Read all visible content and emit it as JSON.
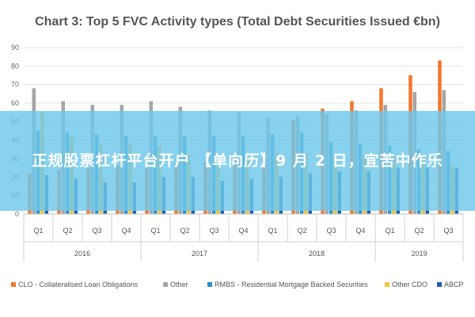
{
  "chart_data": {
    "type": "bar",
    "title": "Chart 3: Top 5 FVC Activity types (Total Debt Securities Issued €bn)",
    "xlabel": "",
    "ylabel": "",
    "ylim": [
      0,
      90
    ],
    "yticks": [
      0,
      10,
      20,
      30,
      40,
      50,
      60,
      70,
      80,
      90
    ],
    "grid": true,
    "legend": "bottom",
    "categories": [
      "Q1",
      "Q2",
      "Q3",
      "Q4",
      "Q1",
      "Q2",
      "Q3",
      "Q4",
      "Q1",
      "Q2",
      "Q3",
      "Q4",
      "Q1",
      "Q2",
      "Q3"
    ],
    "years": [
      {
        "label": "2016",
        "start": 0,
        "end": 3
      },
      {
        "label": "2017",
        "start": 4,
        "end": 7
      },
      {
        "label": "2018",
        "start": 8,
        "end": 11
      },
      {
        "label": "2019",
        "start": 12,
        "end": 14
      }
    ],
    "series": [
      {
        "name": "CLO - Collateralised Loan Obligations",
        "color": "#f4772c",
        "values": [
          22,
          24,
          25,
          26,
          26,
          27,
          28,
          29,
          30,
          51,
          57,
          61,
          68,
          75,
          83
        ]
      },
      {
        "name": "Other",
        "color": "#a6a6a6",
        "values": [
          68,
          61,
          59,
          59,
          61,
          58,
          56,
          55,
          52,
          53,
          54,
          56,
          59,
          66,
          67
        ]
      },
      {
        "name": "RMBS - Residential Mortgage Backed Securities",
        "color": "#2e8fc4",
        "values": [
          45,
          44,
          43,
          42,
          42,
          42,
          42,
          42,
          43,
          44,
          39,
          38,
          37,
          35,
          34
        ]
      },
      {
        "name": "Other CDO",
        "color": "#f3c43e",
        "values": [
          55,
          42,
          38,
          38,
          37,
          32,
          30,
          30,
          33,
          33,
          32,
          32,
          31,
          30,
          26
        ]
      },
      {
        "name": "ABCP",
        "color": "#1f5fae",
        "values": [
          21,
          19,
          17,
          17,
          20,
          20,
          18,
          19,
          20,
          22,
          23,
          23,
          25,
          25,
          25
        ]
      }
    ]
  },
  "overlay": {
    "text": "正规股票杠杆平台开户 【单向历】9 月 2 日，宜苦中作乐"
  }
}
